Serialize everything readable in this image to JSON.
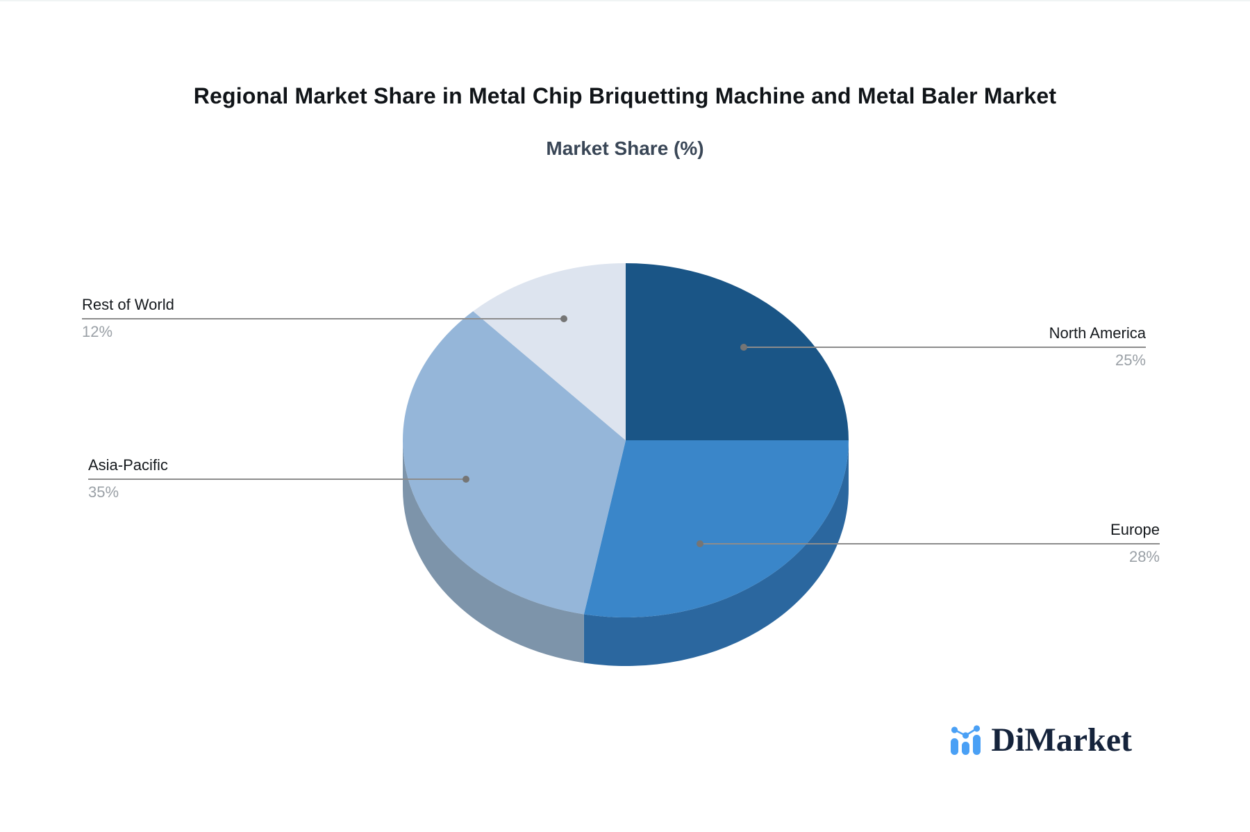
{
  "header": {
    "title": "Regional Market Share in Metal Chip Briquetting Machine and Metal Baler Market",
    "subtitle": "Market Share (%)"
  },
  "chart_data": {
    "type": "pie",
    "title": "Regional Market Share in Metal Chip Briquetting Machine and Metal Baler Market",
    "subtitle": "Market Share (%)",
    "unit": "%",
    "style": "3d-pie",
    "start_angle_deg": 0,
    "direction": "clockwise",
    "slices": [
      {
        "name": "North America",
        "value": 25,
        "label": "25%",
        "color": "#1a5586",
        "side_color": null
      },
      {
        "name": "Europe",
        "value": 28,
        "label": "28%",
        "color": "#3a86c9",
        "side_color": "#2b679f"
      },
      {
        "name": "Asia-Pacific",
        "value": 35,
        "label": "35%",
        "color": "#95b6d9",
        "side_color": "#7d94aa"
      },
      {
        "name": "Rest of World",
        "value": 12,
        "label": "12%",
        "color": "#dde4ef",
        "side_color": "#c6cfdd"
      }
    ],
    "label_line_color": "#8c8c8c",
    "label_dot_color": "#757575",
    "label_name_color": "#15191d",
    "label_value_color": "#9aa0a6",
    "legend": "none",
    "background": "#ffffff"
  },
  "logo": {
    "text": "DiMarket",
    "icon": "bar-chart-icon",
    "icon_color": "#4aa0f5",
    "text_color": "#15233b"
  }
}
